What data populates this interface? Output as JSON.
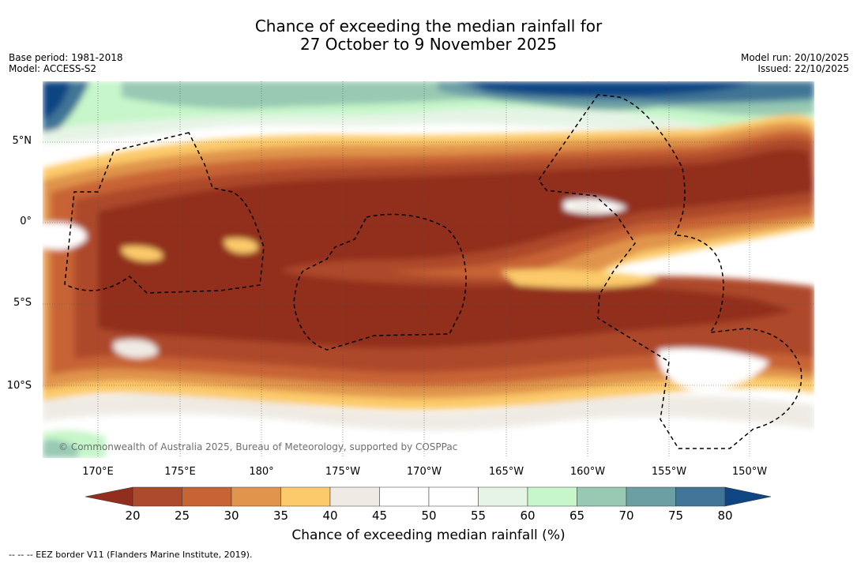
{
  "title": {
    "line1": "Chance of exceeding the median rainfall for",
    "line2": "27 October to 9 November 2025"
  },
  "meta_left": {
    "base_period": "Base period: 1981-2018",
    "model": "Model: ACCESS-S2"
  },
  "meta_right": {
    "model_run": "Model run: 20/10/2025",
    "issued": "Issued: 22/10/2025"
  },
  "map": {
    "lat_labels": [
      "5°N",
      "0°",
      "5°S",
      "10°S"
    ],
    "lon_labels": [
      "170°E",
      "175°E",
      "180°",
      "175°W",
      "170°W",
      "165°W",
      "160°W",
      "155°W",
      "150°W"
    ],
    "copyright": "© Commonwealth of Australia 2025, Bureau of Meteorology, supported by COSPPac"
  },
  "colorbar": {
    "label": "Chance of exceeding median rainfall (%)",
    "ticks": [
      "20",
      "25",
      "30",
      "35",
      "40",
      "45",
      "50",
      "55",
      "60",
      "65",
      "70",
      "75",
      "80"
    ],
    "colors": {
      "below_20": "#922e1d",
      "c20_25": "#ad4a2b",
      "c25_30": "#c86434",
      "c30_35": "#e0944c",
      "c35_40": "#fcca6a",
      "c40_45": "#efebe4",
      "c45_50": "#ffffff",
      "c50_55": "#ffffff",
      "c55_60": "#e6f4e6",
      "c60_65": "#c6f6c9",
      "c65_70": "#97c9b3",
      "c70_75": "#6c9fa4",
      "c75_80": "#417496",
      "above_80": "#0f4583"
    }
  },
  "footer": {
    "eez_note": "--  --  -- EEZ border V11 (Flanders Marine Institute, 2019)."
  }
}
